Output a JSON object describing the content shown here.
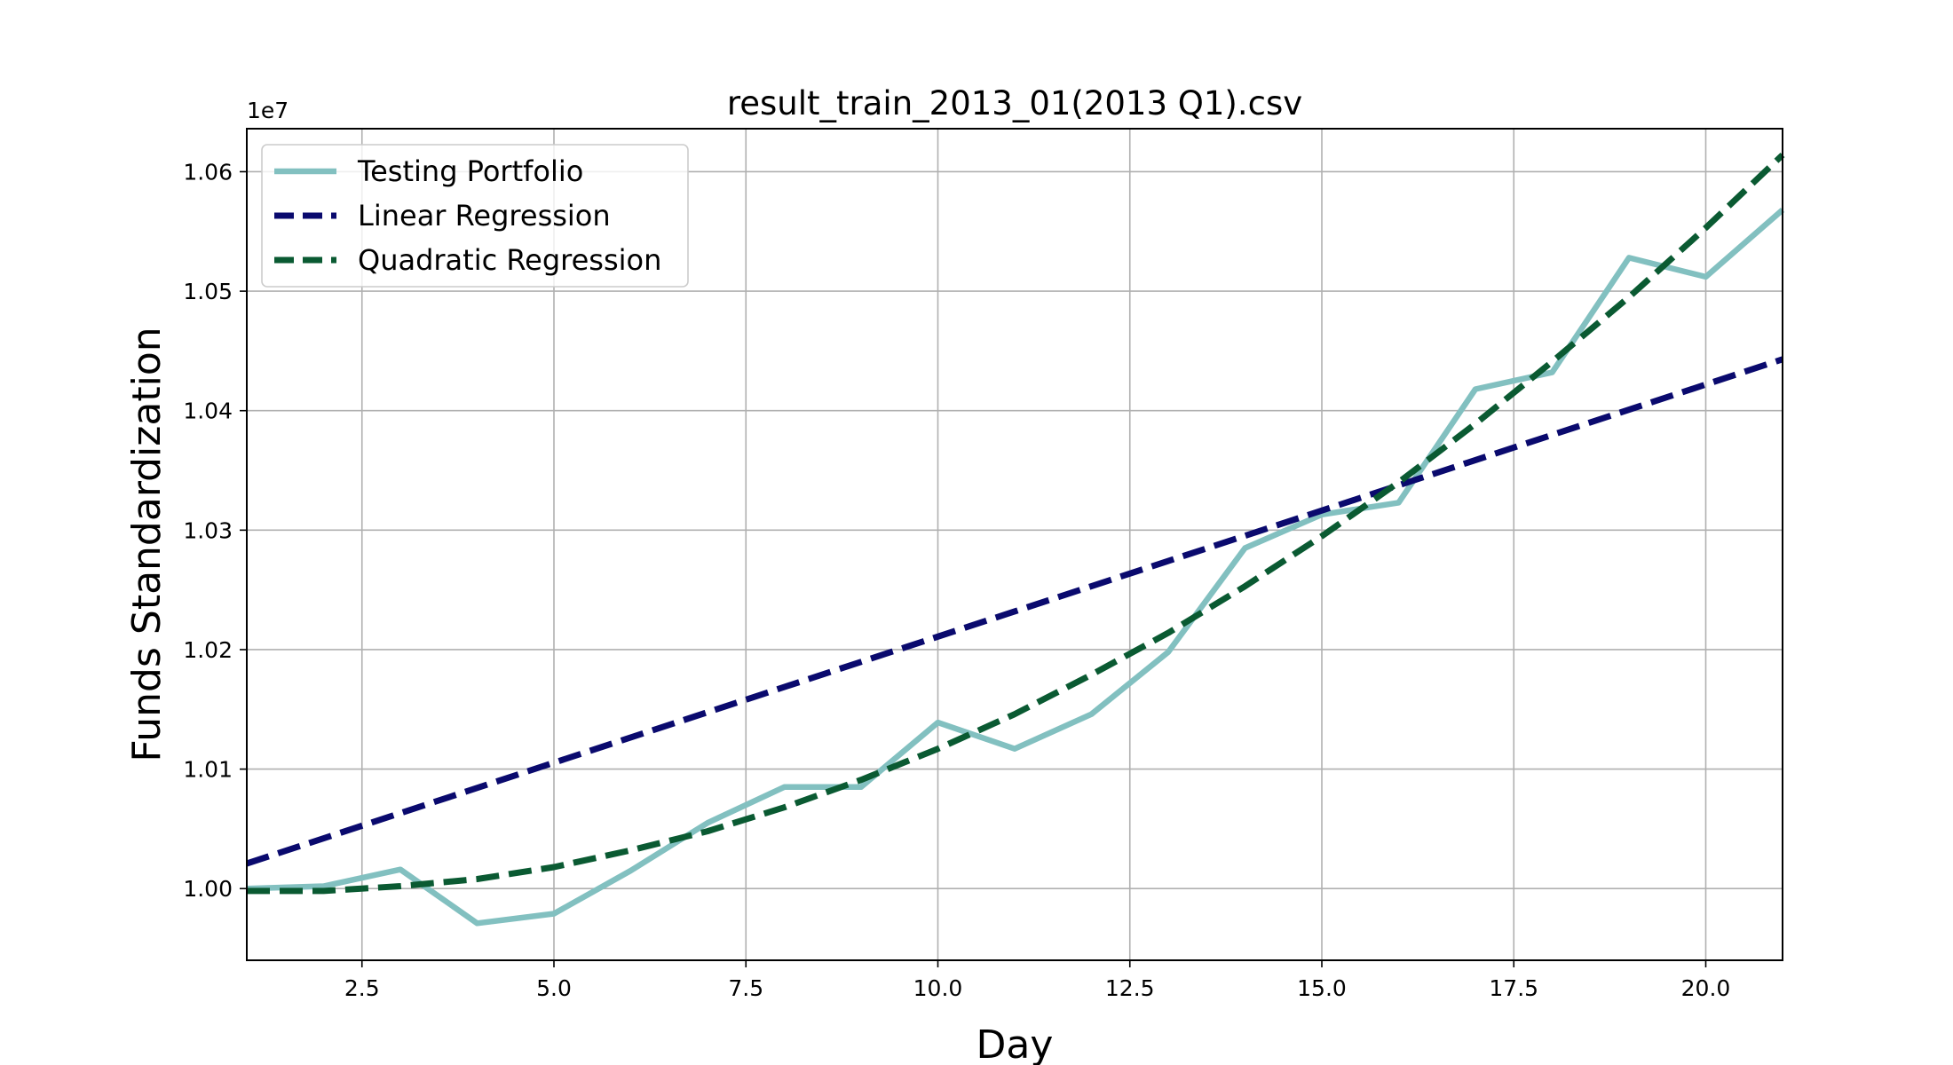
{
  "chart_data": {
    "type": "line",
    "title": "result_train_2013_01(2013 Q1).csv",
    "xlabel": "Day",
    "ylabel": "Funds Standardization",
    "y_offset_label": "1e7",
    "xlim": [
      1,
      21
    ],
    "ylim": [
      0.994,
      1.0636
    ],
    "grid": true,
    "legend_position": "top-left",
    "x_ticks": [
      2.5,
      5.0,
      7.5,
      10.0,
      12.5,
      15.0,
      17.5,
      20.0
    ],
    "x_tick_labels": [
      "2.5",
      "5.0",
      "7.5",
      "10.0",
      "12.5",
      "15.0",
      "17.5",
      "20.0"
    ],
    "y_ticks": [
      1.0,
      1.01,
      1.02,
      1.03,
      1.04,
      1.05,
      1.06
    ],
    "y_tick_labels": [
      "1.00",
      "1.01",
      "1.02",
      "1.03",
      "1.04",
      "1.05",
      "1.06"
    ],
    "series": [
      {
        "name": "Testing Portfolio",
        "color": "#82c0c0",
        "style": "solid",
        "x": [
          1,
          2,
          3,
          4,
          5,
          6,
          7,
          8,
          9,
          10,
          11,
          12,
          13,
          14,
          15,
          16,
          17,
          18,
          19,
          20,
          21
        ],
        "y": [
          1.0,
          1.0002,
          1.0016,
          0.9971,
          0.9979,
          1.0015,
          1.0055,
          1.0085,
          1.0085,
          1.0139,
          1.0117,
          1.0146,
          1.0198,
          1.0285,
          1.0313,
          1.0323,
          1.0418,
          1.0432,
          1.0528,
          1.0512,
          1.0568
        ]
      },
      {
        "name": "Linear Regression",
        "color": "#0a0a6e",
        "style": "dashed",
        "x": [
          1,
          21
        ],
        "y": [
          1.0021,
          1.0443
        ]
      },
      {
        "name": "Quadratic Regression",
        "color": "#0a5a32",
        "style": "dashed",
        "x": [
          1,
          2,
          3,
          4,
          5,
          6,
          7,
          8,
          9,
          10,
          11,
          12,
          13,
          14,
          15,
          16,
          17,
          18,
          19,
          20,
          21
        ],
        "y": [
          0.9998,
          0.9998,
          1.0002,
          1.0008,
          1.0018,
          1.0032,
          1.0048,
          1.0068,
          1.0091,
          1.0117,
          1.0146,
          1.0179,
          1.0214,
          1.0253,
          1.0295,
          1.034,
          1.0389,
          1.0441,
          1.0495,
          1.0553,
          1.0614
        ]
      }
    ]
  }
}
